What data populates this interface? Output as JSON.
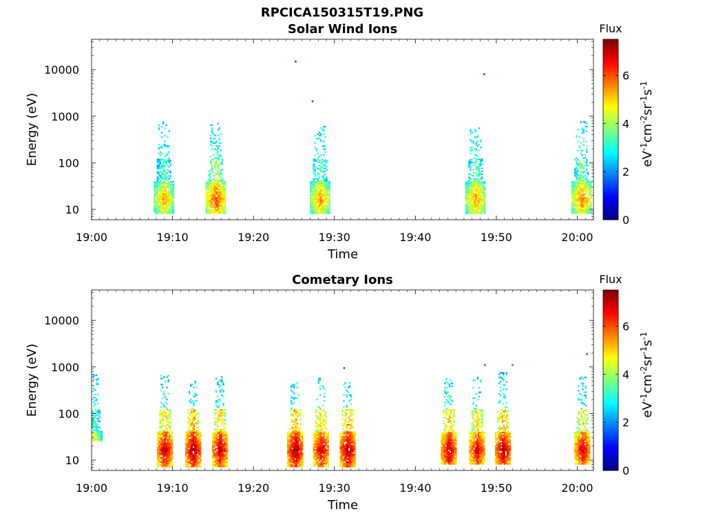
{
  "figure_title": "RPCICA150315T19.PNG",
  "chart_data": [
    {
      "type": "heatmap",
      "title": "Solar Wind Ions",
      "xlabel": "Time",
      "ylabel": "Energy (eV)",
      "x_ticks": [
        "19:00",
        "19:10",
        "19:20",
        "19:30",
        "19:40",
        "19:50",
        "20:00"
      ],
      "xlim": [
        "19:00",
        "20:02"
      ],
      "y_scale": "log",
      "y_ticks": [
        10,
        100,
        1000,
        10000
      ],
      "ylim": [
        6,
        45000
      ],
      "colorbar": {
        "label": "Flux",
        "unit": "eV-1cm-2sr-1s-1",
        "range": [
          0,
          7.5
        ],
        "ticks": [
          0,
          2,
          4,
          6
        ]
      },
      "bursts": [
        {
          "time": "19:08.9",
          "energy_range": [
            8,
            750
          ],
          "peak_flux": 5.5
        },
        {
          "time": "19:15.3",
          "energy_range": [
            8,
            700
          ],
          "peak_flux": 6.2
        },
        {
          "time": "19:28.2",
          "energy_range": [
            8,
            600
          ],
          "peak_flux": 5.6
        },
        {
          "time": "19:47.4",
          "energy_range": [
            8,
            600
          ],
          "peak_flux": 5.6
        },
        {
          "time": "20:00.5",
          "energy_range": [
            8,
            750
          ],
          "peak_flux": 5.8
        }
      ],
      "isolated_points": [
        {
          "time": "19:25.2",
          "energy": 15000,
          "flux": 1.5
        },
        {
          "time": "19:48.5",
          "energy": 8000,
          "flux": 1.5
        },
        {
          "time": "19:27.3",
          "energy": 2100,
          "flux": 1.5
        }
      ]
    },
    {
      "type": "heatmap",
      "title": "Cometary Ions",
      "xlabel": "Time",
      "ylabel": "Energy (eV)",
      "x_ticks": [
        "19:00",
        "19:10",
        "19:20",
        "19:30",
        "19:40",
        "19:50",
        "20:00"
      ],
      "xlim": [
        "19:00",
        "20:02"
      ],
      "y_scale": "log",
      "y_ticks": [
        10,
        100,
        1000,
        10000
      ],
      "ylim": [
        6,
        45000
      ],
      "colorbar": {
        "label": "Flux",
        "unit": "eV-1cm-2sr-1s-1",
        "range": [
          0,
          7.5
        ],
        "ticks": [
          0,
          2,
          4,
          6
        ]
      },
      "bursts": [
        {
          "time": "19:00.3",
          "energy_range": [
            25,
            700
          ],
          "peak_flux": 5.5
        },
        {
          "time": "19:09.0",
          "energy_range": [
            7,
            650
          ],
          "peak_flux": 7.2
        },
        {
          "time": "19:12.5",
          "energy_range": [
            7,
            500
          ],
          "peak_flux": 7.4
        },
        {
          "time": "19:15.8",
          "energy_range": [
            7,
            600
          ],
          "peak_flux": 7.2
        },
        {
          "time": "19:25.1",
          "energy_range": [
            7,
            450
          ],
          "peak_flux": 7.4
        },
        {
          "time": "19:28.3",
          "energy_range": [
            7,
            550
          ],
          "peak_flux": 7.1
        },
        {
          "time": "19:31.6",
          "energy_range": [
            7,
            500
          ],
          "peak_flux": 7.4
        },
        {
          "time": "19:44.1",
          "energy_range": [
            8,
            550
          ],
          "peak_flux": 7.2
        },
        {
          "time": "19:47.6",
          "energy_range": [
            8,
            600
          ],
          "peak_flux": 7.0
        },
        {
          "time": "19:50.8",
          "energy_range": [
            8,
            800
          ],
          "peak_flux": 7.3
        },
        {
          "time": "20:00.6",
          "energy_range": [
            8,
            650
          ],
          "peak_flux": 7.0
        }
      ],
      "isolated_points": [
        {
          "time": "19:31.2",
          "energy": 950,
          "flux": 1.5
        },
        {
          "time": "19:48.6",
          "energy": 1100,
          "flux": 1.8
        },
        {
          "time": "19:52.0",
          "energy": 1100,
          "flux": 1.8
        },
        {
          "time": "20:01.2",
          "energy": 1900,
          "flux": 1.5
        }
      ]
    }
  ]
}
